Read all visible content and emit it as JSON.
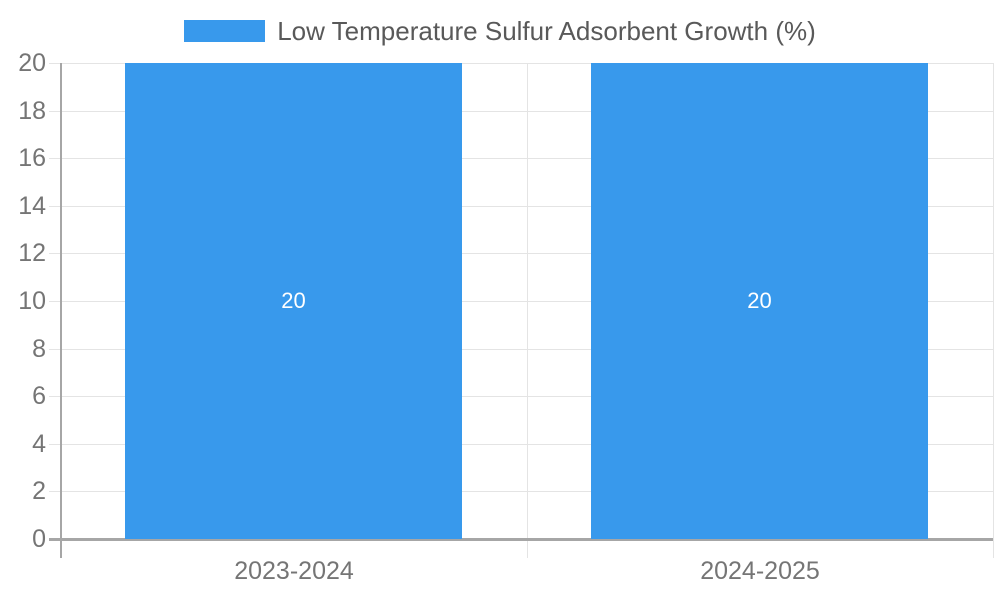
{
  "chart_data": {
    "type": "bar",
    "title": "",
    "xlabel": "",
    "ylabel": "",
    "categories": [
      "2023-2024",
      "2024-2025"
    ],
    "series": [
      {
        "name": "Low Temperature Sulfur Adsorbent Growth (%)",
        "color": "#3899ec",
        "values": [
          20,
          20
        ]
      }
    ],
    "bar_value_labels": [
      "20",
      "20"
    ],
    "ylim": [
      0,
      20
    ],
    "ytick_step": 2,
    "yticks": [
      "0",
      "2",
      "4",
      "6",
      "8",
      "10",
      "12",
      "14",
      "16",
      "18",
      "20"
    ],
    "grid": true,
    "legend_position": "top",
    "colors": {
      "bar": "#3899ec",
      "bar_label": "#ffffff",
      "grid": "#e4e4e4",
      "axis": "#a6a6a6",
      "tick_label": "#757575",
      "legend_label": "#595959"
    }
  }
}
